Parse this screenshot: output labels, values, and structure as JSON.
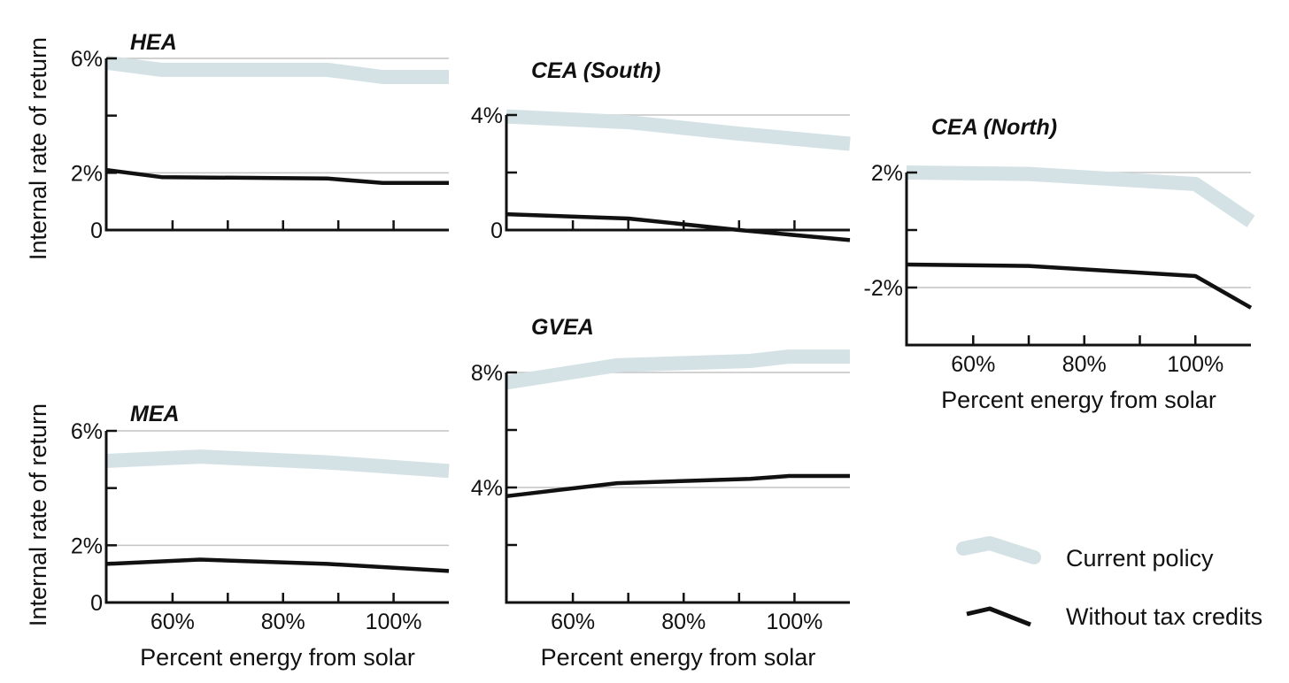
{
  "chart_data": [
    {
      "type": "line",
      "title": "HEA",
      "ylabel": "Internal rate of return",
      "xlabel": "",
      "xlim": [
        48,
        110
      ],
      "ylim": [
        0,
        6
      ],
      "yticks": [
        {
          "value": 0,
          "label": "0"
        },
        {
          "value": 2,
          "label": "2%"
        },
        {
          "value": 4,
          "label": ""
        },
        {
          "value": 6,
          "label": "6%"
        }
      ],
      "xticks": [
        {
          "value": 60,
          "label": ""
        },
        {
          "value": 70,
          "label": ""
        },
        {
          "value": 80,
          "label": ""
        },
        {
          "value": 90,
          "label": ""
        },
        {
          "value": 100,
          "label": ""
        }
      ],
      "gridlines": [
        2,
        6
      ],
      "series": [
        {
          "key": "current",
          "x": [
            48,
            58,
            88,
            98,
            110
          ],
          "values": [
            5.85,
            5.6,
            5.6,
            5.35,
            5.35
          ]
        },
        {
          "key": "without",
          "x": [
            48,
            58,
            88,
            98,
            110
          ],
          "values": [
            2.1,
            1.85,
            1.8,
            1.65,
            1.65
          ]
        }
      ]
    },
    {
      "type": "line",
      "title": "CEA (South)",
      "ylabel": "",
      "xlabel": "",
      "xlim": [
        48,
        110
      ],
      "ylim": [
        0,
        4
      ],
      "yticks": [
        {
          "value": 0,
          "label": "0"
        },
        {
          "value": 2,
          "label": ""
        },
        {
          "value": 4,
          "label": "4%"
        }
      ],
      "xticks": [
        {
          "value": 60,
          "label": ""
        },
        {
          "value": 70,
          "label": ""
        },
        {
          "value": 80,
          "label": ""
        },
        {
          "value": 90,
          "label": ""
        },
        {
          "value": 100,
          "label": ""
        }
      ],
      "gridlines": [
        4
      ],
      "series": [
        {
          "key": "current",
          "x": [
            48,
            70,
            90,
            110
          ],
          "values": [
            3.95,
            3.75,
            3.35,
            3.0
          ]
        },
        {
          "key": "without",
          "x": [
            48,
            70,
            90,
            110
          ],
          "values": [
            0.55,
            0.4,
            0.0,
            -0.35
          ]
        }
      ]
    },
    {
      "type": "line",
      "title": "CEA (North)",
      "ylabel": "",
      "xlabel": "Percent energy from solar",
      "xlim": [
        48,
        110
      ],
      "ylim": [
        -4,
        2
      ],
      "yticks": [
        {
          "value": -4,
          "label": ""
        },
        {
          "value": -2,
          "label": "-2%"
        },
        {
          "value": 0,
          "label": ""
        },
        {
          "value": 2,
          "label": "2%"
        }
      ],
      "xticks": [
        {
          "value": 60,
          "label": "60%"
        },
        {
          "value": 70,
          "label": ""
        },
        {
          "value": 80,
          "label": "80%"
        },
        {
          "value": 90,
          "label": ""
        },
        {
          "value": 100,
          "label": "100%"
        }
      ],
      "gridlines": [
        2,
        -2
      ],
      "series": [
        {
          "key": "current",
          "x": [
            48,
            70,
            100,
            110
          ],
          "values": [
            2.0,
            1.95,
            1.6,
            0.3
          ]
        },
        {
          "key": "without",
          "x": [
            48,
            70,
            100,
            110
          ],
          "values": [
            -1.2,
            -1.25,
            -1.6,
            -2.7
          ]
        }
      ]
    },
    {
      "type": "line",
      "title": "MEA",
      "ylabel": "Internal rate of return",
      "xlabel": "Percent energy from solar",
      "xlim": [
        48,
        110
      ],
      "ylim": [
        0,
        6
      ],
      "yticks": [
        {
          "value": 0,
          "label": "0"
        },
        {
          "value": 2,
          "label": "2%"
        },
        {
          "value": 4,
          "label": ""
        },
        {
          "value": 6,
          "label": "6%"
        }
      ],
      "xticks": [
        {
          "value": 60,
          "label": "60%"
        },
        {
          "value": 70,
          "label": ""
        },
        {
          "value": 80,
          "label": "80%"
        },
        {
          "value": 90,
          "label": ""
        },
        {
          "value": 100,
          "label": "100%"
        }
      ],
      "gridlines": [
        2,
        6
      ],
      "series": [
        {
          "key": "current",
          "x": [
            48,
            65,
            88,
            110
          ],
          "values": [
            4.95,
            5.1,
            4.9,
            4.6
          ]
        },
        {
          "key": "without",
          "x": [
            48,
            65,
            88,
            110
          ],
          "values": [
            1.35,
            1.5,
            1.35,
            1.1
          ]
        }
      ]
    },
    {
      "type": "line",
      "title": "GVEA",
      "ylabel": "",
      "xlabel": "Percent energy from solar",
      "xlim": [
        48,
        110
      ],
      "ylim": [
        0,
        8
      ],
      "yticks": [
        {
          "value": 2,
          "label": ""
        },
        {
          "value": 4,
          "label": "4%"
        },
        {
          "value": 6,
          "label": ""
        },
        {
          "value": 8,
          "label": "8%"
        }
      ],
      "xticks": [
        {
          "value": 60,
          "label": "60%"
        },
        {
          "value": 70,
          "label": ""
        },
        {
          "value": 80,
          "label": "80%"
        },
        {
          "value": 90,
          "label": ""
        },
        {
          "value": 100,
          "label": "100%"
        }
      ],
      "gridlines": [
        8,
        4
      ],
      "series": [
        {
          "key": "current",
          "x": [
            48,
            68,
            92,
            99,
            110
          ],
          "values": [
            7.65,
            8.25,
            8.4,
            8.55,
            8.55
          ]
        },
        {
          "key": "without",
          "x": [
            48,
            68,
            92,
            99,
            110
          ],
          "values": [
            3.7,
            4.15,
            4.3,
            4.4,
            4.4
          ]
        }
      ]
    }
  ],
  "legend": {
    "placement": "bottom-right",
    "items": [
      {
        "key": "current",
        "label": "Current policy"
      },
      {
        "key": "without",
        "label": "Without tax credits"
      }
    ]
  },
  "colors": {
    "current": "#d4e2e6",
    "without": "#111111",
    "axis": "#111111",
    "grid": "#c4c4c4"
  }
}
